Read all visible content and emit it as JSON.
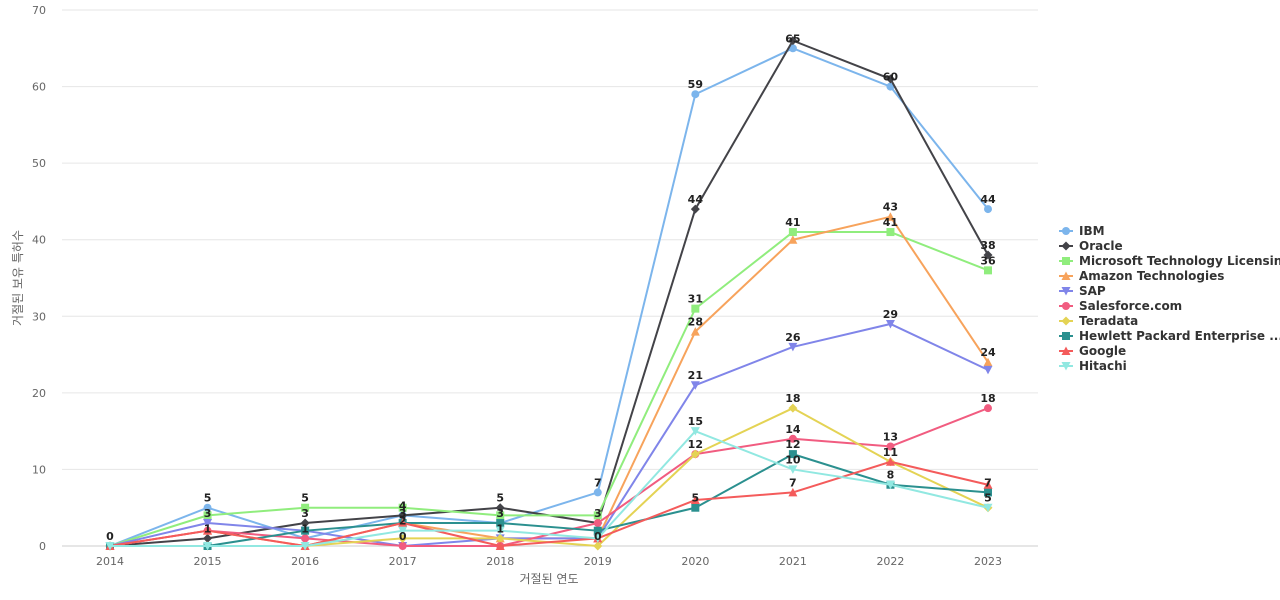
{
  "chart_data": {
    "type": "line",
    "title": "",
    "xlabel": "거절된 연도",
    "ylabel": "거절된 보유 특허수",
    "x": [
      2014,
      2015,
      2016,
      2017,
      2018,
      2019,
      2020,
      2021,
      2022,
      2023
    ],
    "ylim": [
      0,
      70
    ],
    "yticks": [
      0,
      10,
      20,
      30,
      40,
      50,
      60,
      70
    ],
    "grid": true,
    "legend": "right",
    "series": [
      {
        "name": "IBM",
        "color": "#7cb5ec",
        "marker": "circle",
        "values": [
          0,
          5,
          1,
          4,
          3,
          7,
          59,
          65,
          60,
          44
        ]
      },
      {
        "name": "Oracle",
        "color": "#434348",
        "marker": "diamond",
        "values": [
          0,
          1,
          3,
          4,
          5,
          3,
          44,
          66,
          61,
          38
        ]
      },
      {
        "name": "Microsoft Technology Licensing",
        "color": "#90ed7d",
        "marker": "square",
        "values": [
          0,
          4,
          5,
          5,
          4,
          4,
          31,
          41,
          41,
          36
        ]
      },
      {
        "name": "Amazon Technologies",
        "color": "#f7a35c",
        "marker": "triangle",
        "values": [
          0,
          2,
          0,
          3,
          1,
          1,
          28,
          40,
          43,
          24
        ]
      },
      {
        "name": "SAP",
        "color": "#8085e9",
        "marker": "triangle-down",
        "values": [
          0,
          3,
          2,
          0,
          1,
          1,
          21,
          26,
          29,
          23
        ]
      },
      {
        "name": "Salesforce.com",
        "color": "#f15c80",
        "marker": "circle",
        "values": [
          0,
          2,
          1,
          0,
          0,
          3,
          12,
          14,
          13,
          18
        ]
      },
      {
        "name": "Teradata",
        "color": "#e4d354",
        "marker": "diamond",
        "values": [
          0,
          0,
          0,
          1,
          1,
          0,
          12,
          18,
          11,
          5
        ]
      },
      {
        "name": "Hewlett Packard Enterprise ...",
        "color": "#2b908f",
        "marker": "square",
        "values": [
          0,
          0,
          2,
          3,
          3,
          2,
          5,
          12,
          8,
          7
        ]
      },
      {
        "name": "Google",
        "color": "#f45b5b",
        "marker": "triangle",
        "values": [
          0,
          2,
          0,
          3,
          0,
          1,
          6,
          7,
          11,
          8
        ]
      },
      {
        "name": "Hitachi",
        "color": "#91e8e1",
        "marker": "triangle-down",
        "values": [
          0,
          0,
          0,
          2,
          2,
          1,
          15,
          10,
          8,
          5
        ]
      }
    ],
    "data_labels": [
      {
        "x": 2014,
        "y": 0,
        "text": "0"
      },
      {
        "x": 2015,
        "y": 5,
        "text": "5"
      },
      {
        "x": 2015,
        "y": 3,
        "text": "3"
      },
      {
        "x": 2015,
        "y": 1,
        "text": "1"
      },
      {
        "x": 2016,
        "y": 5,
        "text": "5"
      },
      {
        "x": 2016,
        "y": 3,
        "text": "3"
      },
      {
        "x": 2016,
        "y": 1,
        "text": "1"
      },
      {
        "x": 2017,
        "y": 4,
        "text": "4"
      },
      {
        "x": 2017,
        "y": 3,
        "text": "3"
      },
      {
        "x": 2017,
        "y": 2,
        "text": "2"
      },
      {
        "x": 2017,
        "y": 0,
        "text": "0"
      },
      {
        "x": 2018,
        "y": 5,
        "text": "5"
      },
      {
        "x": 2018,
        "y": 3,
        "text": "3"
      },
      {
        "x": 2018,
        "y": 1,
        "text": "1"
      },
      {
        "x": 2019,
        "y": 7,
        "text": "7"
      },
      {
        "x": 2019,
        "y": 3,
        "text": "3"
      },
      {
        "x": 2019,
        "y": 0,
        "text": "0"
      },
      {
        "x": 2020,
        "y": 59,
        "text": "59"
      },
      {
        "x": 2020,
        "y": 44,
        "text": "44"
      },
      {
        "x": 2020,
        "y": 31,
        "text": "31"
      },
      {
        "x": 2020,
        "y": 28,
        "text": "28"
      },
      {
        "x": 2020,
        "y": 21,
        "text": "21"
      },
      {
        "x": 2020,
        "y": 15,
        "text": "15"
      },
      {
        "x": 2020,
        "y": 12,
        "text": "12"
      },
      {
        "x": 2020,
        "y": 5,
        "text": "5"
      },
      {
        "x": 2021,
        "y": 65,
        "text": "65"
      },
      {
        "x": 2021,
        "y": 41,
        "text": "41"
      },
      {
        "x": 2021,
        "y": 26,
        "text": "26"
      },
      {
        "x": 2021,
        "y": 18,
        "text": "18"
      },
      {
        "x": 2021,
        "y": 14,
        "text": "14"
      },
      {
        "x": 2021,
        "y": 12,
        "text": "12"
      },
      {
        "x": 2021,
        "y": 10,
        "text": "10"
      },
      {
        "x": 2021,
        "y": 7,
        "text": "7"
      },
      {
        "x": 2022,
        "y": 60,
        "text": "60"
      },
      {
        "x": 2022,
        "y": 43,
        "text": "43"
      },
      {
        "x": 2022,
        "y": 41,
        "text": "41"
      },
      {
        "x": 2022,
        "y": 29,
        "text": "29"
      },
      {
        "x": 2022,
        "y": 13,
        "text": "13"
      },
      {
        "x": 2022,
        "y": 11,
        "text": "11"
      },
      {
        "x": 2022,
        "y": 8,
        "text": "8"
      },
      {
        "x": 2023,
        "y": 44,
        "text": "44"
      },
      {
        "x": 2023,
        "y": 38,
        "text": "38"
      },
      {
        "x": 2023,
        "y": 36,
        "text": "36"
      },
      {
        "x": 2023,
        "y": 24,
        "text": "24"
      },
      {
        "x": 2023,
        "y": 18,
        "text": "18"
      },
      {
        "x": 2023,
        "y": 7,
        "text": "7"
      },
      {
        "x": 2023,
        "y": 5,
        "text": "5"
      }
    ]
  }
}
